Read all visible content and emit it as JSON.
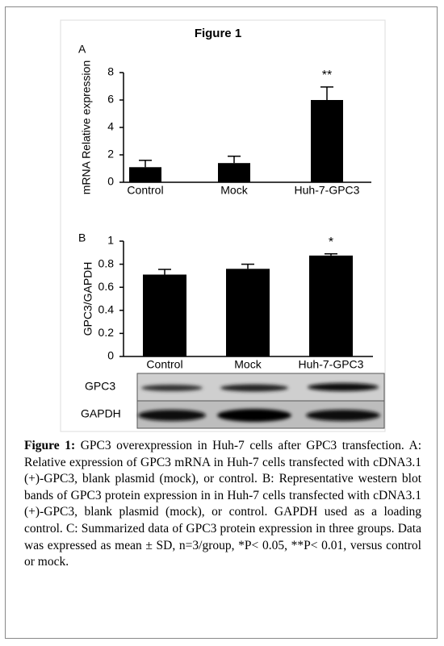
{
  "figure_title": "Figure 1",
  "chart_data": [
    {
      "type": "bar",
      "panel": "A",
      "ylabel": "mRNA Relative expression",
      "categories": [
        "Control",
        "Mock",
        "Huh-7-GPC3"
      ],
      "values": [
        1.1,
        1.4,
        6.0
      ],
      "errors": [
        0.5,
        0.5,
        0.95
      ],
      "color": "#000000",
      "ylim": [
        0,
        8
      ],
      "yticks": [
        0,
        2,
        4,
        6,
        8
      ],
      "annotation": "**"
    },
    {
      "type": "bar",
      "panel": "B",
      "ylabel": "GPC3/GAPDH",
      "categories": [
        "Control",
        "Mock",
        "Huh-7-GPC3"
      ],
      "values": [
        0.71,
        0.76,
        0.875
      ],
      "errors": [
        0.045,
        0.04,
        0.015
      ],
      "color": "#000000",
      "ylim": [
        0,
        1
      ],
      "yticks": [
        0,
        0.2,
        0.4,
        0.6,
        0.8,
        1
      ],
      "annotation": "*"
    }
  ],
  "blot": {
    "labels": [
      "GPC3",
      "GAPDH"
    ]
  },
  "caption": {
    "label": "Figure 1:",
    "text": "GPC3 overexpression in Huh-7 cells after GPC3 transfection. A: Relative expression of GPC3 mRNA in Huh-7 cells transfected with cDNA3.1 (+)-GPC3, blank plasmid (mock), or control. B: Representative western blot bands of GPC3 protein expression in in Huh-7 cells transfected with cDNA3.1 (+)-GPC3, blank plasmid (mock), or control. GAPDH used as a loading control. C: Summarized data of GPC3 protein expression in three groups. Data was expressed as mean ± SD, n=3/group, *P< 0.05, **P< 0.01, versus control or mock."
  }
}
